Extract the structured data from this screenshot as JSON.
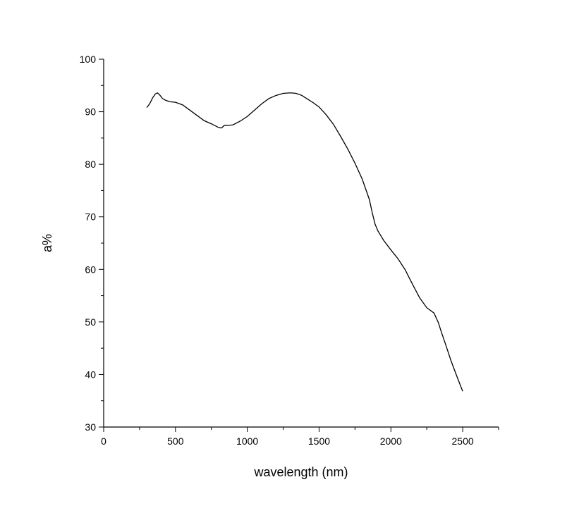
{
  "chart_data": {
    "type": "line",
    "title": "",
    "xlabel": "wavelength (nm)",
    "ylabel": "a%",
    "xlim": [
      0,
      2750
    ],
    "ylim": [
      30,
      100
    ],
    "xticks": [
      0,
      500,
      1000,
      1500,
      2000,
      2500
    ],
    "yticks": [
      30,
      40,
      50,
      60,
      70,
      80,
      90,
      100
    ],
    "grid": false,
    "legend": "none",
    "line_color": "#000000",
    "series": [
      {
        "x": [
          300,
          320,
          340,
          360,
          375,
          390,
          410,
          430,
          460,
          500,
          550,
          600,
          650,
          700,
          750,
          800,
          820,
          840,
          860,
          900,
          950,
          1000,
          1050,
          1100,
          1150,
          1200,
          1250,
          1300,
          1340,
          1380,
          1420,
          1460,
          1500,
          1550,
          1600,
          1650,
          1700,
          1750,
          1800,
          1850,
          1870,
          1890,
          1910,
          1950,
          2000,
          2050,
          2100,
          2150,
          2200,
          2250,
          2300,
          2330,
          2350,
          2380,
          2420,
          2460,
          2500
        ],
        "y": [
          90.8,
          91.5,
          92.6,
          93.4,
          93.6,
          93.2,
          92.5,
          92.2,
          91.9,
          91.8,
          91.3,
          90.3,
          89.3,
          88.3,
          87.7,
          87.0,
          86.9,
          87.4,
          87.4,
          87.5,
          88.2,
          89.1,
          90.3,
          91.5,
          92.5,
          93.1,
          93.5,
          93.6,
          93.5,
          93.1,
          92.4,
          91.7,
          90.9,
          89.4,
          87.6,
          85.3,
          82.9,
          80.2,
          77.2,
          73.3,
          70.8,
          68.6,
          67.3,
          65.5,
          63.7,
          62.0,
          59.9,
          57.2,
          54.6,
          52.7,
          51.7,
          49.9,
          48.2,
          45.8,
          42.5,
          39.6,
          36.8
        ]
      }
    ]
  }
}
